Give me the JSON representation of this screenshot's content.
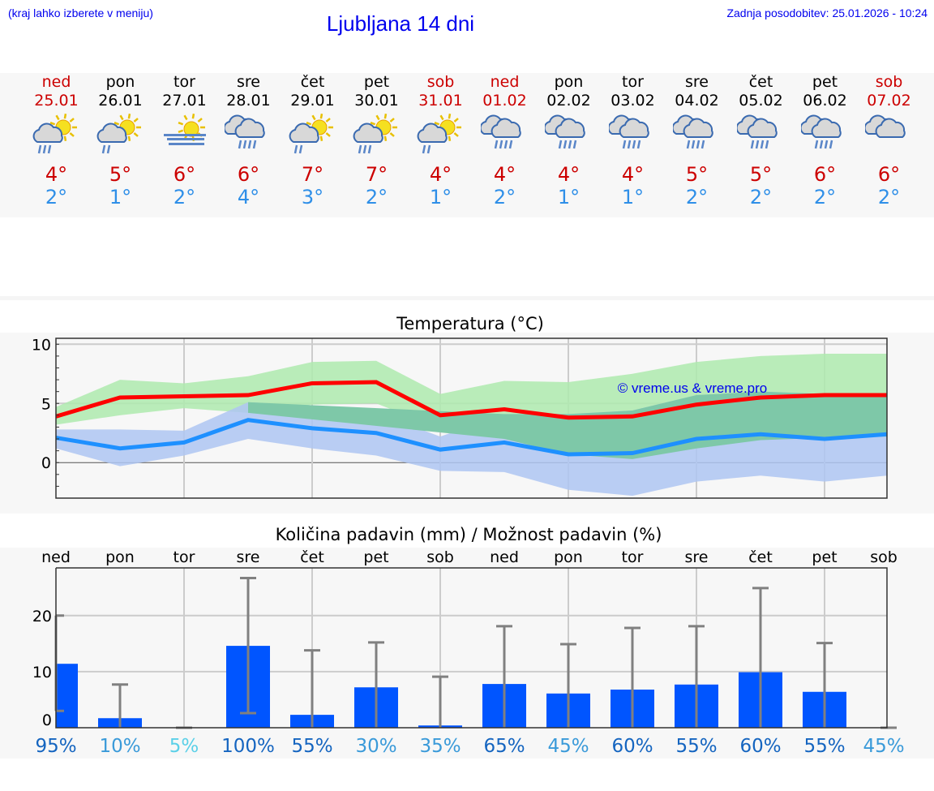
{
  "header": {
    "hint": "(kraj lahko izberete v meniju)",
    "title": "Ljubljana 14 dni",
    "updated": "Zadnja posodobitev: 25.01.2026 - 10:24"
  },
  "days": [
    {
      "name": "ned",
      "date": "25.01",
      "weekend": true,
      "icon": "sun-cloud-heavy-rain-icon",
      "max": "4°",
      "min": "2°"
    },
    {
      "name": "pon",
      "date": "26.01",
      "weekend": false,
      "icon": "sun-cloud-light-rain-icon",
      "max": "5°",
      "min": "1°"
    },
    {
      "name": "tor",
      "date": "27.01",
      "weekend": false,
      "icon": "sun-fog-icon",
      "max": "6°",
      "min": "2°"
    },
    {
      "name": "sre",
      "date": "28.01",
      "weekend": false,
      "icon": "clouds-rain-icon",
      "max": "6°",
      "min": "4°"
    },
    {
      "name": "čet",
      "date": "29.01",
      "weekend": false,
      "icon": "sun-cloud-light-rain-icon",
      "max": "7°",
      "min": "3°"
    },
    {
      "name": "pet",
      "date": "30.01",
      "weekend": false,
      "icon": "sun-cloud-heavy-rain-icon",
      "max": "7°",
      "min": "2°"
    },
    {
      "name": "sob",
      "date": "31.01",
      "weekend": true,
      "icon": "sun-cloud-light-rain-icon",
      "max": "4°",
      "min": "1°"
    },
    {
      "name": "ned",
      "date": "01.02",
      "weekend": true,
      "icon": "clouds-rain-icon",
      "max": "4°",
      "min": "2°"
    },
    {
      "name": "pon",
      "date": "02.02",
      "weekend": false,
      "icon": "clouds-rain-icon",
      "max": "4°",
      "min": "1°"
    },
    {
      "name": "tor",
      "date": "03.02",
      "weekend": false,
      "icon": "clouds-rain-icon",
      "max": "4°",
      "min": "1°"
    },
    {
      "name": "sre",
      "date": "04.02",
      "weekend": false,
      "icon": "clouds-rain-icon",
      "max": "5°",
      "min": "2°"
    },
    {
      "name": "čet",
      "date": "05.02",
      "weekend": false,
      "icon": "clouds-rain-icon",
      "max": "5°",
      "min": "2°"
    },
    {
      "name": "pet",
      "date": "06.02",
      "weekend": false,
      "icon": "clouds-rain-icon",
      "max": "6°",
      "min": "2°"
    },
    {
      "name": "sob",
      "date": "07.02",
      "weekend": true,
      "icon": "clouds-icon",
      "max": "6°",
      "min": "2°"
    }
  ],
  "colors": {
    "max_line": "#ff0000",
    "min_line": "#1e90ff",
    "max_band": "#aeeaae",
    "min_band": "#aec6f2",
    "overlap": "#7ec8a8",
    "bar": "#0055ff",
    "error_bar": "#808080",
    "weekend": "#cc0000",
    "watermark": "#0000ee"
  },
  "chart_data": [
    {
      "type": "line",
      "title": "Temperatura (°C)",
      "watermark": "© vreme.us & vreme.pro",
      "ylim": [
        -3,
        10.5
      ],
      "yticks": [
        "10",
        "5",
        "0"
      ],
      "grid": true,
      "series": [
        {
          "values": [
            3.9,
            5.5,
            5.6,
            5.7,
            6.7,
            6.8,
            4.0,
            4.5,
            3.8,
            3.9,
            4.9,
            5.5,
            5.7,
            5.7
          ],
          "band_max": [
            4.7,
            7.0,
            6.7,
            7.3,
            8.5,
            8.6,
            5.8,
            6.9,
            6.8,
            7.5,
            8.5,
            9.0,
            9.2,
            9.2
          ],
          "band_min": [
            3.2,
            4.0,
            4.6,
            4.2,
            4.9,
            5.0,
            2.9,
            2.0,
            0.7,
            0.3,
            1.2,
            1.9,
            2.1,
            2.2
          ]
        },
        {
          "values": [
            2.1,
            1.2,
            1.7,
            3.6,
            2.9,
            2.5,
            1.1,
            1.7,
            0.7,
            0.8,
            2.0,
            2.4,
            2.0,
            2.4
          ],
          "band_max": [
            2.8,
            2.8,
            2.7,
            5.1,
            4.8,
            4.2,
            2.2,
            4.1,
            4.1,
            4.4,
            5.7,
            6.0,
            5.8,
            5.8
          ],
          "band_min": [
            1.2,
            -0.3,
            0.6,
            2.0,
            1.2,
            0.6,
            -0.7,
            -0.8,
            -2.3,
            -2.8,
            -1.6,
            -1.1,
            -1.6,
            -1.1
          ]
        }
      ]
    },
    {
      "type": "bar",
      "title": "Količina padavin (mm) / Možnost padavin (%)",
      "categories": [
        "ned",
        "pon",
        "tor",
        "sre",
        "čet",
        "pet",
        "sob",
        "ned",
        "pon",
        "tor",
        "sre",
        "čet",
        "pet",
        "sob"
      ],
      "ylim": [
        0,
        28.5
      ],
      "yticks": [
        "20",
        "10",
        "0"
      ],
      "grid": true,
      "values": [
        11.4,
        1.7,
        0,
        14.6,
        2.3,
        7.2,
        0.4,
        7.8,
        6.1,
        6.8,
        7.7,
        9.9,
        6.4,
        0
      ],
      "error_min": [
        3.0,
        0,
        0,
        2.6,
        0,
        0,
        0,
        0,
        0,
        0,
        0,
        0,
        0,
        0
      ],
      "error_max": [
        20,
        7.7,
        0,
        26.7,
        13.8,
        15.2,
        9.1,
        18.1,
        14.9,
        17.8,
        18.1,
        24.9,
        15.1,
        0
      ],
      "probability": [
        "95%",
        "10%",
        "5%",
        "100%",
        "55%",
        "30%",
        "35%",
        "65%",
        "45%",
        "60%",
        "55%",
        "60%",
        "55%",
        "45%"
      ]
    }
  ]
}
